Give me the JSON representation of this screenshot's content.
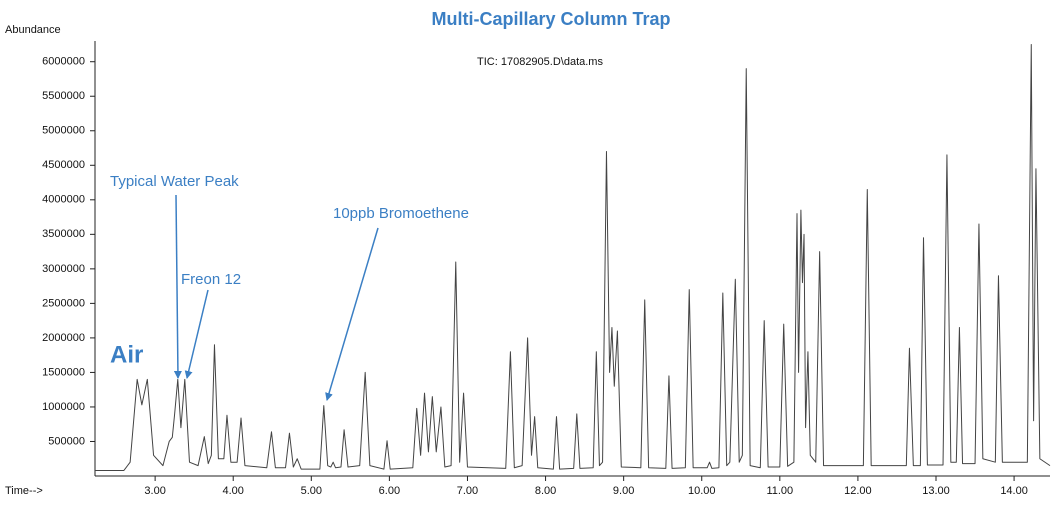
{
  "chart_data": {
    "type": "line",
    "title": "Multi-Capillary Column Trap",
    "subtitle": "TIC: 17082905.D\\data.ms",
    "x_label": "Time-->",
    "y_label": "Abundance",
    "xlim": [
      2.23,
      14.46
    ],
    "ylim": [
      0,
      6300000
    ],
    "xticks": [
      {
        "value": 3,
        "label": "3.00"
      },
      {
        "value": 4,
        "label": "4.00"
      },
      {
        "value": 5,
        "label": "5.00"
      },
      {
        "value": 6,
        "label": "6.00"
      },
      {
        "value": 7,
        "label": "7.00"
      },
      {
        "value": 8,
        "label": "8.00"
      },
      {
        "value": 9,
        "label": "9.00"
      },
      {
        "value": 10,
        "label": "10.00"
      },
      {
        "value": 11,
        "label": "11.00"
      },
      {
        "value": 12,
        "label": "12.00"
      },
      {
        "value": 13,
        "label": "13.00"
      },
      {
        "value": 14,
        "label": "14.00"
      }
    ],
    "yticks": [
      500000,
      1000000,
      1500000,
      2000000,
      2500000,
      3000000,
      3500000,
      4000000,
      4500000,
      5000000,
      5500000,
      6000000
    ],
    "grid": false,
    "annotations": [
      {
        "text": "Air"
      },
      {
        "text": "Typical Water Peak"
      },
      {
        "text": "Freon 12"
      },
      {
        "text": "10ppb Bromoethene"
      }
    ],
    "series": [
      {
        "color": "#444444",
        "x": [
          2.23,
          2.6,
          2.68,
          2.77,
          2.83,
          2.9,
          2.98,
          3.1,
          3.18,
          3.22,
          3.25,
          3.29,
          3.33,
          3.38,
          3.44,
          3.55,
          3.63,
          3.68,
          3.72,
          3.76,
          3.81,
          3.88,
          3.92,
          3.97,
          4.05,
          4.1,
          4.15,
          4.43,
          4.49,
          4.54,
          4.67,
          4.72,
          4.77,
          4.82,
          4.87,
          5.11,
          5.16,
          5.21,
          5.25,
          5.28,
          5.31,
          5.38,
          5.42,
          5.47,
          5.62,
          5.69,
          5.75,
          5.93,
          5.97,
          6.01,
          6.3,
          6.35,
          6.4,
          6.45,
          6.5,
          6.55,
          6.6,
          6.66,
          6.71,
          6.79,
          6.85,
          6.9,
          6.95,
          7.0,
          7.49,
          7.55,
          7.6,
          7.7,
          7.77,
          7.82,
          7.86,
          7.9,
          8.1,
          8.14,
          8.18,
          8.36,
          8.4,
          8.44,
          8.61,
          8.65,
          8.69,
          8.73,
          8.78,
          8.82,
          8.85,
          8.88,
          8.92,
          8.97,
          9.22,
          9.27,
          9.32,
          9.54,
          9.58,
          9.62,
          9.79,
          9.84,
          9.89,
          10.07,
          10.1,
          10.13,
          10.22,
          10.27,
          10.32,
          10.36,
          10.43,
          10.48,
          10.52,
          10.57,
          10.62,
          10.75,
          10.8,
          10.85,
          11.0,
          11.05,
          11.1,
          11.18,
          11.22,
          11.24,
          11.27,
          11.29,
          11.31,
          11.33,
          11.36,
          11.39,
          11.46,
          11.51,
          11.56,
          12.07,
          12.12,
          12.17,
          12.62,
          12.66,
          12.71,
          12.8,
          12.84,
          12.89,
          13.09,
          13.14,
          13.19,
          13.26,
          13.3,
          13.34,
          13.5,
          13.55,
          13.6,
          13.76,
          13.8,
          13.85,
          14.17,
          14.22,
          14.25,
          14.28,
          14.33,
          14.46
        ],
        "values": [
          80000,
          80000,
          200000,
          1400000,
          1030000,
          1400000,
          300000,
          150000,
          500000,
          560000,
          900000,
          1400000,
          700000,
          1400000,
          200000,
          150000,
          570000,
          180000,
          300000,
          1900000,
          250000,
          250000,
          880000,
          200000,
          200000,
          840000,
          150000,
          120000,
          640000,
          120000,
          120000,
          620000,
          130000,
          250000,
          100000,
          100000,
          1020000,
          150000,
          130000,
          200000,
          120000,
          130000,
          670000,
          130000,
          150000,
          1500000,
          150000,
          100000,
          510000,
          100000,
          120000,
          980000,
          300000,
          1200000,
          350000,
          1150000,
          350000,
          1000000,
          130000,
          150000,
          3100000,
          200000,
          1200000,
          130000,
          110000,
          1800000,
          120000,
          150000,
          2000000,
          300000,
          860000,
          120000,
          100000,
          860000,
          100000,
          110000,
          900000,
          110000,
          120000,
          1800000,
          150000,
          200000,
          4700000,
          1500000,
          2150000,
          1300000,
          2100000,
          130000,
          120000,
          2550000,
          120000,
          110000,
          1450000,
          110000,
          120000,
          2700000,
          120000,
          120000,
          200000,
          110000,
          120000,
          2650000,
          150000,
          200000,
          2850000,
          200000,
          300000,
          5900000,
          150000,
          120000,
          2250000,
          130000,
          130000,
          2200000,
          140000,
          200000,
          3800000,
          1500000,
          3850000,
          2800000,
          3500000,
          700000,
          1800000,
          300000,
          200000,
          3250000,
          150000,
          150000,
          4150000,
          150000,
          150000,
          1850000,
          150000,
          150000,
          3450000,
          160000,
          160000,
          4650000,
          200000,
          200000,
          2150000,
          180000,
          180000,
          3650000,
          250000,
          200000,
          2900000,
          200000,
          200000,
          6250000,
          800000,
          4450000,
          250000,
          150000
        ]
      }
    ]
  }
}
